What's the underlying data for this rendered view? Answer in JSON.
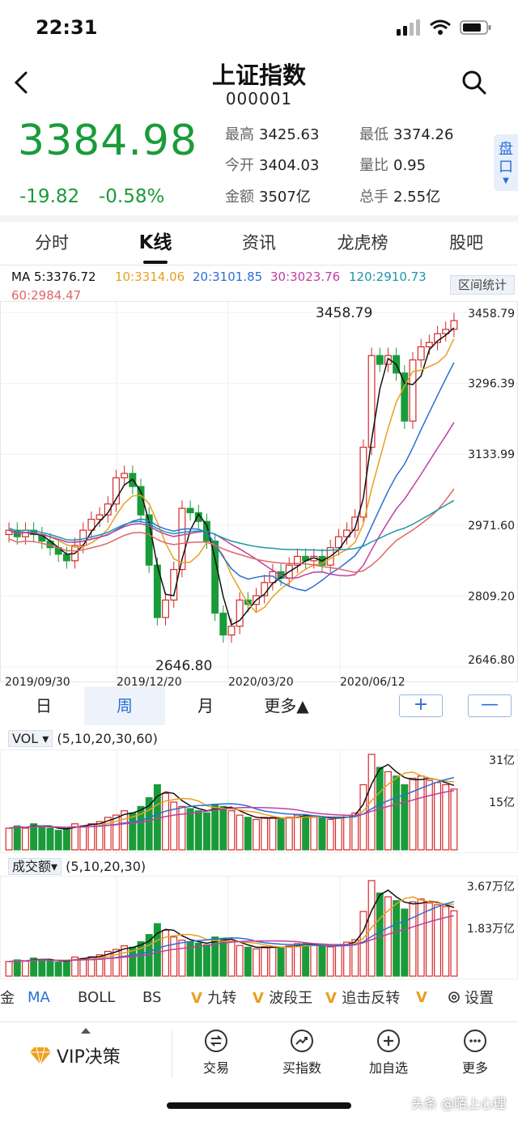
{
  "status": {
    "time": "22:31"
  },
  "header": {
    "title": "上证指数",
    "code": "000001",
    "pan_label": "盘口"
  },
  "quote": {
    "price": "3384.98",
    "change": "-19.82",
    "change_pct": "-0.58%",
    "stats": [
      {
        "label": "最高",
        "value": "3425.63"
      },
      {
        "label": "最低",
        "value": "3374.26"
      },
      {
        "label": "今开",
        "value": "3404.03"
      },
      {
        "label": "量比",
        "value": "0.95"
      },
      {
        "label": "金额",
        "value": "3507亿"
      },
      {
        "label": "总手",
        "value": "2.55亿"
      }
    ]
  },
  "tabs": [
    "分时",
    "K线",
    "资讯",
    "龙虎榜",
    "股吧"
  ],
  "ma": {
    "ma5": "MA 5:3376.72",
    "ma10": "10:3314.06",
    "ma20": "20:3101.85",
    "ma30": "30:3023.76",
    "ma120": "120:2910.73",
    "ma60": "60:2984.47",
    "range_label": "区间统计"
  },
  "colors": {
    "up": "#d42a2a",
    "down": "#1a9b3a",
    "ma5": "#111111",
    "ma10": "#e8a020",
    "ma20": "#2a6fd6",
    "ma30": "#c03fa0",
    "ma60": "#e06666",
    "ma120": "#1e96a6"
  },
  "kline": {
    "y_ticks": [
      "3458.79",
      "3296.39",
      "3133.99",
      "2971.60",
      "2809.20",
      "2646.80"
    ],
    "x_ticks": [
      "2019/09/30",
      "2019/12/20",
      "2020/03/20",
      "2020/06/12"
    ],
    "high_label": "3458.79",
    "low_label": "2646.80"
  },
  "periods": [
    "日",
    "周",
    "月",
    "更多▲"
  ],
  "zoom": {
    "plus": "+",
    "minus": "—"
  },
  "vol": {
    "name": "VOL ▾",
    "params": "(5,10,20,30,60)",
    "ticks": [
      "31亿",
      "15亿"
    ]
  },
  "amount": {
    "name": "成交额▾",
    "params": "(5,10,20,30)",
    "ticks": [
      "3.67万亿",
      "1.83万亿"
    ]
  },
  "indicators": [
    "金",
    "MA",
    "BOLL",
    "BS",
    "九转",
    "波段王",
    "追击反转",
    "设置"
  ],
  "bottom": {
    "vip": "VIP决策",
    "items": [
      "交易",
      "买指数",
      "加自选",
      "更多"
    ]
  },
  "watermark": "头条 @陌上心理"
}
